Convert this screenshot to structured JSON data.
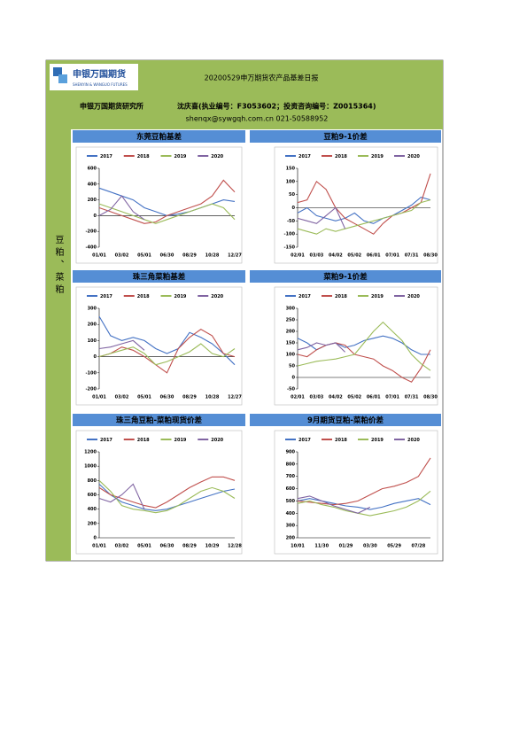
{
  "header": {
    "logo_cn": "申银万国期货",
    "logo_en": "SHENYIN & WANGUO FUTURES",
    "title": "20200529申万期货农产品基差日报",
    "institute": "申银万国期货研究所",
    "analyst": "沈庆喜(执业编号：F3053602；投资咨询编号：Z0015364)",
    "contact": "shenqx@sywgqh.com.cn 021-50588952"
  },
  "side_label": "豆粕、菜粕",
  "chart_data": [
    {
      "type": "line",
      "title": "东莞豆粕基差",
      "categories": [
        "01/01",
        null,
        "03/02",
        null,
        "05/01",
        null,
        "06/30",
        null,
        "08/29",
        null,
        "10/28",
        null,
        "12/27"
      ],
      "series": [
        {
          "name": "2017",
          "color": "#4472c4",
          "values": [
            350,
            300,
            250,
            200,
            100,
            50,
            0,
            20,
            50,
            100,
            150,
            200,
            180
          ]
        },
        {
          "name": "2018",
          "color": "#c0504d",
          "values": [
            100,
            50,
            0,
            -50,
            -100,
            -80,
            0,
            50,
            100,
            150,
            250,
            450,
            300
          ]
        },
        {
          "name": "2019",
          "color": "#9bbb59",
          "values": [
            150,
            100,
            50,
            0,
            -50,
            -100,
            -50,
            0,
            50,
            100,
            150,
            100,
            -50
          ]
        },
        {
          "name": "2020",
          "color": "#8064a2",
          "values": [
            0,
            80,
            250,
            50,
            -50,
            null,
            null,
            null,
            null,
            null,
            null,
            null,
            null
          ]
        }
      ],
      "ylim": [
        -400,
        600
      ],
      "yticks": [
        -400,
        -200,
        0,
        200,
        400,
        600
      ]
    },
    {
      "type": "line",
      "title": "豆粕9-1价差",
      "categories": [
        "02/01",
        null,
        "03/03",
        null,
        "04/02",
        null,
        "05/02",
        null,
        "06/01",
        null,
        "07/01",
        null,
        "07/31",
        null,
        "08/30"
      ],
      "series": [
        {
          "name": "2017",
          "color": "#4472c4",
          "values": [
            -20,
            0,
            -30,
            -40,
            -50,
            -40,
            -20,
            -50,
            -60,
            -40,
            -30,
            -10,
            10,
            40,
            30
          ]
        },
        {
          "name": "2018",
          "color": "#c0504d",
          "values": [
            20,
            30,
            100,
            70,
            0,
            -40,
            -60,
            -80,
            -100,
            -60,
            -30,
            -20,
            0,
            20,
            130
          ]
        },
        {
          "name": "2019",
          "color": "#9bbb59",
          "values": [
            -80,
            -90,
            -100,
            -80,
            -90,
            -80,
            -70,
            -60,
            -50,
            -40,
            -30,
            -20,
            -10,
            20,
            30
          ]
        },
        {
          "name": "2020",
          "color": "#8064a2",
          "values": [
            -40,
            -50,
            -60,
            -30,
            0,
            -80,
            null,
            null,
            null,
            null,
            null,
            null,
            null,
            null,
            null
          ]
        }
      ],
      "ylim": [
        -150,
        150
      ],
      "yticks": [
        -150,
        -100,
        -50,
        0,
        50,
        100,
        150
      ]
    },
    {
      "type": "line",
      "title": "珠三角菜粕基差",
      "categories": [
        "01/01",
        null,
        "03/02",
        null,
        "05/01",
        null,
        "06/30",
        null,
        "08/29",
        null,
        "10/28",
        null,
        "12/27"
      ],
      "series": [
        {
          "name": "2017",
          "color": "#4472c4",
          "values": [
            250,
            130,
            100,
            120,
            100,
            50,
            20,
            50,
            150,
            120,
            80,
            20,
            -50
          ]
        },
        {
          "name": "2018",
          "color": "#c0504d",
          "values": [
            0,
            20,
            60,
            40,
            0,
            -50,
            -100,
            50,
            120,
            170,
            130,
            20,
            0
          ]
        },
        {
          "name": "2019",
          "color": "#9bbb59",
          "values": [
            0,
            20,
            40,
            60,
            20,
            -50,
            -30,
            0,
            30,
            80,
            20,
            0,
            50
          ]
        },
        {
          "name": "2020",
          "color": "#8064a2",
          "values": [
            50,
            60,
            80,
            100,
            40,
            null,
            null,
            null,
            null,
            null,
            null,
            null,
            null
          ]
        }
      ],
      "ylim": [
        -200,
        300
      ],
      "yticks": [
        -200,
        -100,
        0,
        100,
        200,
        300
      ]
    },
    {
      "type": "line",
      "title": "菜粕9-1价差",
      "categories": [
        "02/01",
        null,
        "03/03",
        null,
        "04/02",
        null,
        "05/02",
        null,
        "06/01",
        null,
        "07/01",
        null,
        "07/31",
        null,
        "08/30"
      ],
      "series": [
        {
          "name": "2017",
          "color": "#4472c4",
          "values": [
            170,
            150,
            120,
            140,
            150,
            130,
            140,
            160,
            170,
            180,
            170,
            150,
            120,
            100,
            100
          ]
        },
        {
          "name": "2018",
          "color": "#c0504d",
          "values": [
            100,
            90,
            120,
            140,
            150,
            140,
            100,
            90,
            80,
            50,
            30,
            0,
            -20,
            40,
            120
          ]
        },
        {
          "name": "2019",
          "color": "#9bbb59",
          "values": [
            50,
            60,
            70,
            75,
            80,
            90,
            100,
            150,
            200,
            240,
            200,
            160,
            100,
            60,
            30
          ]
        },
        {
          "name": "2020",
          "color": "#8064a2",
          "values": [
            120,
            130,
            150,
            140,
            150,
            110,
            null,
            null,
            null,
            null,
            null,
            null,
            null,
            null,
            null
          ]
        }
      ],
      "ylim": [
        -50,
        300
      ],
      "yticks": [
        -50,
        0,
        50,
        100,
        150,
        200,
        250,
        300
      ]
    },
    {
      "type": "line",
      "title": "珠三角豆粕-菜粕现货价差",
      "categories": [
        "01/01",
        null,
        "03/02",
        null,
        "05/01",
        null,
        "06/30",
        null,
        "08/29",
        null,
        "10/29",
        null,
        "12/28"
      ],
      "series": [
        {
          "name": "2017",
          "color": "#4472c4",
          "values": [
            750,
            600,
            500,
            450,
            400,
            380,
            400,
            450,
            500,
            550,
            600,
            650,
            680
          ]
        },
        {
          "name": "2018",
          "color": "#c0504d",
          "values": [
            700,
            600,
            550,
            500,
            450,
            420,
            500,
            600,
            700,
            780,
            850,
            850,
            800
          ]
        },
        {
          "name": "2019",
          "color": "#9bbb59",
          "values": [
            800,
            650,
            450,
            400,
            380,
            350,
            380,
            450,
            550,
            650,
            700,
            650,
            550
          ]
        },
        {
          "name": "2020",
          "color": "#8064a2",
          "values": [
            550,
            500,
            600,
            750,
            400,
            null,
            null,
            null,
            null,
            null,
            null,
            null,
            null
          ]
        }
      ],
      "ylim": [
        0,
        1200
      ],
      "yticks": [
        0,
        200,
        400,
        600,
        800,
        1000,
        1200
      ]
    },
    {
      "type": "line",
      "title": "9月期货豆粕-菜粕价差",
      "categories": [
        "10/01",
        null,
        "11/30",
        null,
        "01/29",
        null,
        "03/30",
        null,
        "05/29",
        null,
        "07/28",
        null
      ],
      "series": [
        {
          "name": "2017",
          "color": "#4472c4",
          "values": [
            500,
            520,
            500,
            480,
            460,
            450,
            430,
            450,
            480,
            500,
            520,
            470
          ]
        },
        {
          "name": "2018",
          "color": "#c0504d",
          "values": [
            500,
            490,
            480,
            470,
            480,
            500,
            550,
            600,
            620,
            650,
            700,
            850
          ]
        },
        {
          "name": "2019",
          "color": "#9bbb59",
          "values": [
            480,
            500,
            470,
            450,
            420,
            400,
            380,
            400,
            420,
            450,
            500,
            580
          ]
        },
        {
          "name": "2020",
          "color": "#8064a2",
          "values": [
            520,
            540,
            500,
            460,
            430,
            400,
            450,
            null,
            null,
            null,
            null,
            null
          ]
        }
      ],
      "ylim": [
        200,
        900
      ],
      "yticks": [
        200,
        300,
        400,
        500,
        600,
        700,
        800,
        900
      ]
    }
  ]
}
